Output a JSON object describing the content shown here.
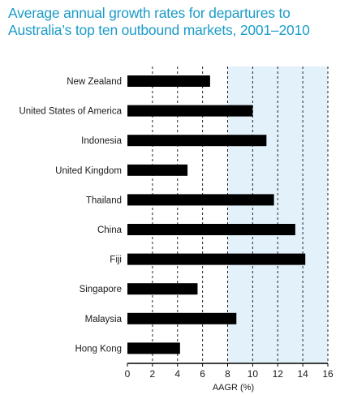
{
  "chart_data": {
    "type": "bar",
    "orientation": "horizontal",
    "title": "Average annual growth rates for departures to Australia’s top ten outbound markets, 2001–2010",
    "xlabel": "AAGR (%)",
    "ylabel": "",
    "xlim": [
      0,
      16
    ],
    "xticks": [
      "0",
      "2",
      "4",
      "6",
      "8",
      "10",
      "12",
      "14",
      "16"
    ],
    "grid": "vertical dashed",
    "shaded_band": [
      8,
      16
    ],
    "categories": [
      "New Zealand",
      "United States of America",
      "Indonesia",
      "United Kingdom",
      "Thailand",
      "China",
      "Fiji",
      "Singapore",
      "Malaysia",
      "Hong Kong"
    ],
    "values": [
      6.6,
      10.0,
      11.1,
      4.8,
      11.7,
      13.4,
      14.2,
      5.6,
      8.7,
      4.2
    ],
    "colors": {
      "bar": "#000000",
      "band": "#e3f1fa",
      "title": "#1c9bc8",
      "grid": "#222222"
    }
  }
}
